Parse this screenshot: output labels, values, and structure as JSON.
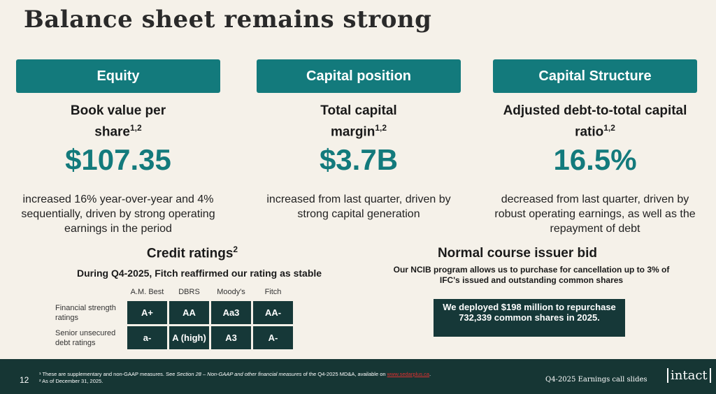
{
  "title": "Balance sheet remains strong",
  "columns": [
    {
      "header": "Equity",
      "metric": "Book value per share",
      "sup": "1,2",
      "value": "$107.35",
      "desc": "increased 16% year-over-year and 4% sequentially, driven by strong operating earnings in the period"
    },
    {
      "header": "Capital position",
      "metric": "Total capital margin",
      "sup": "1,2",
      "value": "$3.7B",
      "desc": "increased from last quarter, driven by strong capital generation"
    },
    {
      "header": "Capital Structure",
      "metric": "Adjusted debt-to-total capital ratio",
      "sup": "1,2",
      "value": "16.5%",
      "desc": "decreased from last quarter, driven by robust operating earnings, as well as the repayment of debt"
    }
  ],
  "credit": {
    "title": "Credit ratings",
    "sup": "2",
    "subtitle": "During Q4-2025, Fitch reaffirmed our rating as stable",
    "agencies": [
      "A.M. Best",
      "DBRS",
      "Moody's",
      "Fitch"
    ],
    "rows": [
      {
        "label": "Financial strength ratings",
        "values": [
          "A+",
          "AA",
          "Aa3",
          "AA-"
        ]
      },
      {
        "label": "Senior unsecured debt ratings",
        "values": [
          "a-",
          "A (high)",
          "A3",
          "A-"
        ]
      }
    ]
  },
  "ncib": {
    "title": "Normal course issuer bid",
    "subtitle": "Our NCIB program allows us to purchase for cancellation up to 3% of IFC's issued and outstanding common shares",
    "box": "We deployed $198 million to repurchase 732,339 common shares in 2025."
  },
  "footer": {
    "page": "12",
    "note1_pre": "¹ These are supplementary and non-GAAP measures. See ",
    "note1_italic": "Section 28 – Non-GAAP and other financial measures",
    "note1_mid": " of the Q4-2025 MD&A, available on ",
    "note1_link": "www.sedarplus.ca",
    "note2": "² As of December 31, 2025.",
    "deck": "Q4-2025 Earnings call slides",
    "logo": "intact"
  }
}
